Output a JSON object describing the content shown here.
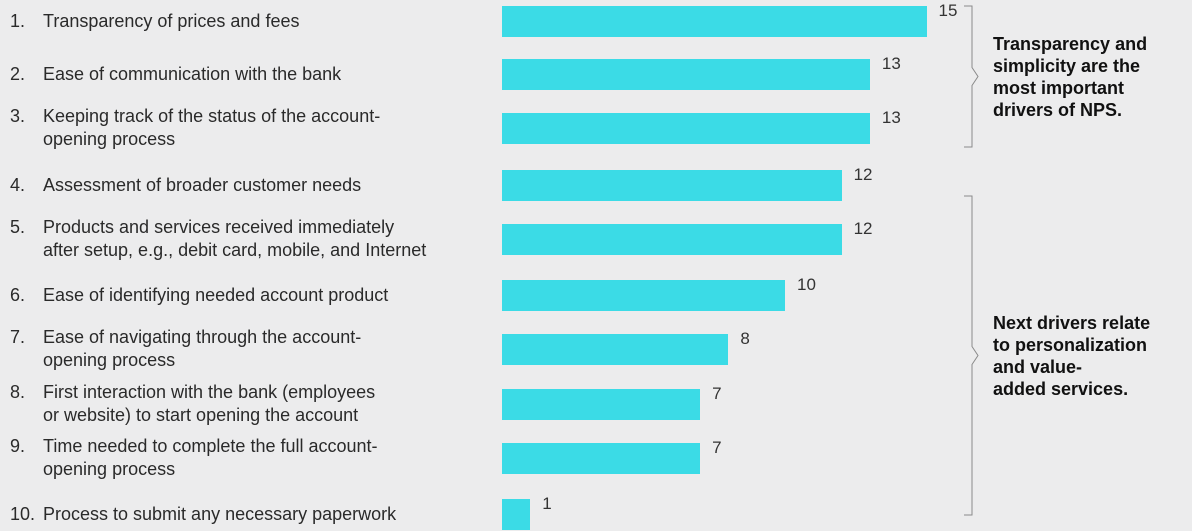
{
  "chart_data": {
    "type": "bar",
    "orientation": "horizontal",
    "categories": [
      {
        "num": "1.",
        "text": "Transparency of prices and fees"
      },
      {
        "num": "2.",
        "text": "Ease of communication with the bank"
      },
      {
        "num": "3.",
        "text": "Keeping track of the status of the account-\nopening process"
      },
      {
        "num": "4.",
        "text": "Assessment of broader customer needs"
      },
      {
        "num": "5.",
        "text": "Products and services received immediately\nafter setup, e.g., debit card, mobile, and Internet"
      },
      {
        "num": "6.",
        "text": "Ease of identifying needed account product"
      },
      {
        "num": "7.",
        "text": "Ease of navigating through the account-\nopening process"
      },
      {
        "num": "8.",
        "text": "First interaction with the bank (employees\nor website) to start opening the account"
      },
      {
        "num": "9.",
        "text": "Time needed to complete the full account-\nopening process"
      },
      {
        "num": "10.",
        "text": "Process to submit any necessary paperwork"
      }
    ],
    "values": [
      15,
      13,
      13,
      12,
      12,
      10,
      8,
      7,
      7,
      1
    ],
    "xlim": [
      0,
      15
    ],
    "grid": false,
    "legend": "none",
    "bar_color": "#3bdbe6",
    "annotations": [
      {
        "text": "Transparency and\nsimplicity are the\nmost important\ndrivers of NPS.",
        "covers": [
          0,
          2
        ]
      },
      {
        "text": "Next drivers relate\nto personalization\nand value-\nadded services.",
        "covers": [
          3,
          9
        ]
      }
    ]
  }
}
